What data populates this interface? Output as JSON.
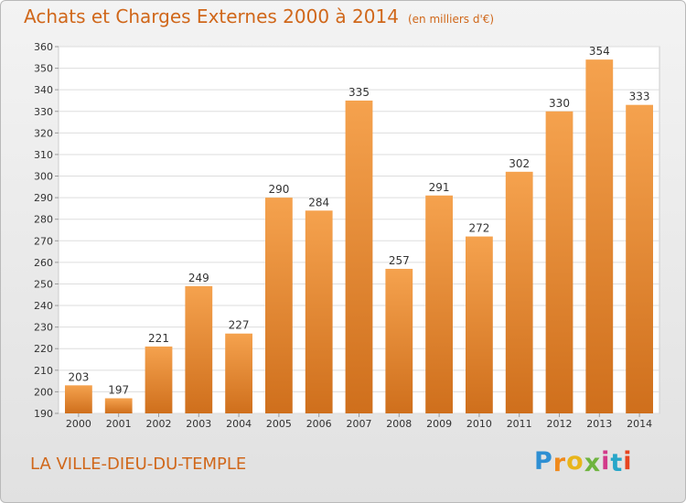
{
  "chart_data": {
    "type": "bar",
    "title": "Achats et Charges Externes 2000 à 2014",
    "unit": "(en milliers d'€)",
    "categories": [
      "2000",
      "2001",
      "2002",
      "2003",
      "2004",
      "2005",
      "2006",
      "2007",
      "2008",
      "2009",
      "2010",
      "2011",
      "2012",
      "2013",
      "2014"
    ],
    "values": [
      203,
      197,
      221,
      249,
      227,
      290,
      284,
      335,
      257,
      291,
      272,
      302,
      330,
      354,
      333
    ],
    "ylim": [
      190,
      360
    ],
    "yticks": [
      190,
      200,
      210,
      220,
      230,
      240,
      250,
      260,
      270,
      280,
      290,
      300,
      310,
      320,
      330,
      340,
      350,
      360
    ],
    "grid": true,
    "bar_color_top": "#f5a24e",
    "bar_color_bottom": "#cf6f1c",
    "accent": "#d0671a"
  },
  "place": "LA VILLE-DIEU-DU-TEMPLE",
  "logo": {
    "letters": [
      "P",
      "r",
      "o",
      "x",
      "i",
      "t",
      "i"
    ],
    "colors": [
      "#2e8fd3",
      "#f08a1c",
      "#e8b51b",
      "#6fb43f",
      "#d23a8a",
      "#27a6c9",
      "#e8441f"
    ]
  }
}
